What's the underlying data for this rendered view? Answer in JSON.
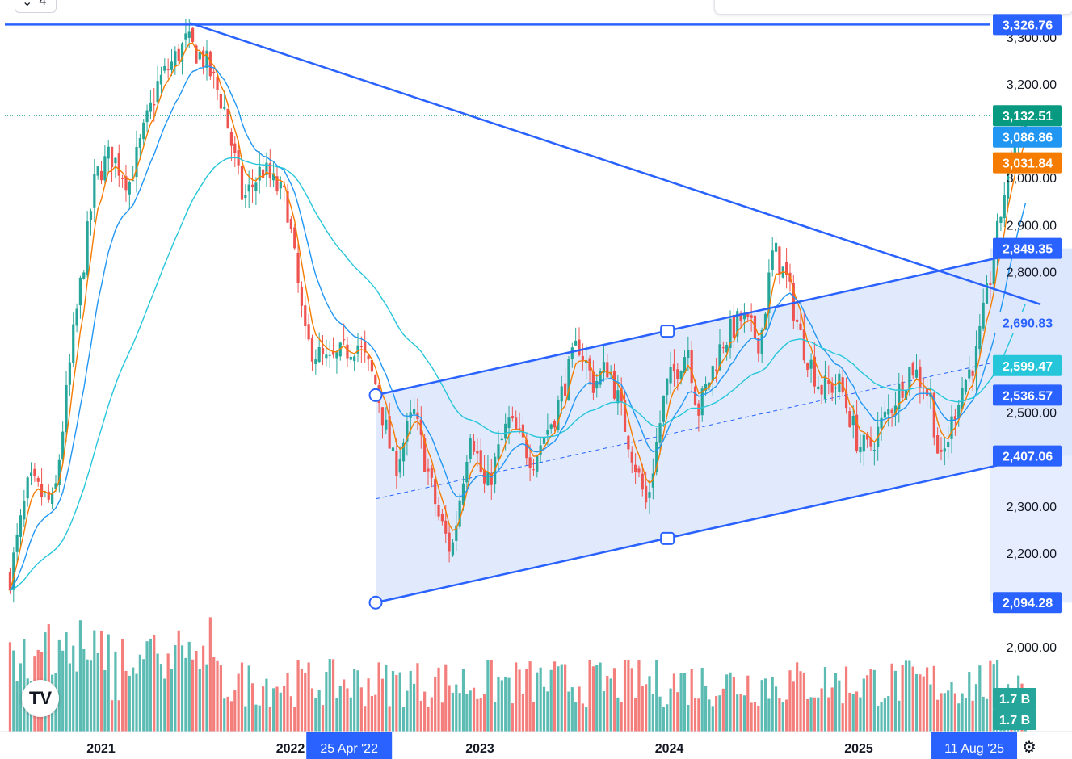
{
  "header": {
    "interval_label": "4",
    "collapse_icon": "chevron-down-icon"
  },
  "colors": {
    "up": "#26a69a",
    "down": "#ef5350",
    "trendline": "#2962ff",
    "channel_fill": "#dce6fd",
    "ema_fast": "#f57c00",
    "ema_mid": "#2196f3",
    "ma_slow": "#26c6da",
    "price_line": "#089981"
  },
  "chart_data": {
    "type": "candlestick",
    "y_axis": {
      "min": 1900,
      "max": 3360,
      "ticks": [
        "2,000.00",
        "2,100.00",
        "2,200.00",
        "2,300.00",
        "2,400.00",
        "2,500.00",
        "2,600.00",
        "2,700.00",
        "2,800.00",
        "2,900.00",
        "3,000.00",
        "3,100.00",
        "3,200.00",
        "3,300.00"
      ],
      "tick_values": [
        2000,
        2100,
        2200,
        2300,
        2400,
        2500,
        2600,
        2700,
        2800,
        2900,
        3000,
        3100,
        3200,
        3300
      ]
    },
    "x_axis": {
      "labels": [
        "2021",
        "2022",
        "2023",
        "2024",
        "2025"
      ],
      "label_times": [
        2021.0,
        2022.0,
        2023.0,
        2024.0,
        2025.0
      ],
      "range": [
        2020.5,
        2025.98
      ]
    },
    "series": [
      {
        "name": "price",
        "keypoints": [
          [
            2020.52,
            2150
          ],
          [
            2020.62,
            2350
          ],
          [
            2020.75,
            2300
          ],
          [
            2020.85,
            2650
          ],
          [
            2020.97,
            3000
          ],
          [
            2021.05,
            3050
          ],
          [
            2021.15,
            2990
          ],
          [
            2021.3,
            3200
          ],
          [
            2021.45,
            3290
          ],
          [
            2021.55,
            3250
          ],
          [
            2021.65,
            3150
          ],
          [
            2021.75,
            2950
          ],
          [
            2021.85,
            3020
          ],
          [
            2021.98,
            2950
          ],
          [
            2022.08,
            2650
          ],
          [
            2022.2,
            2600
          ],
          [
            2022.35,
            2650
          ],
          [
            2022.45,
            2560
          ],
          [
            2022.55,
            2380
          ],
          [
            2022.65,
            2500
          ],
          [
            2022.78,
            2280
          ],
          [
            2022.85,
            2200
          ],
          [
            2022.95,
            2470
          ],
          [
            2023.03,
            2330
          ],
          [
            2023.15,
            2480
          ],
          [
            2023.28,
            2400
          ],
          [
            2023.4,
            2500
          ],
          [
            2023.52,
            2650
          ],
          [
            2023.6,
            2560
          ],
          [
            2023.68,
            2600
          ],
          [
            2023.78,
            2450
          ],
          [
            2023.88,
            2300
          ],
          [
            2023.98,
            2550
          ],
          [
            2024.1,
            2640
          ],
          [
            2024.15,
            2500
          ],
          [
            2024.28,
            2650
          ],
          [
            2024.38,
            2700
          ],
          [
            2024.48,
            2650
          ],
          [
            2024.55,
            2850
          ],
          [
            2024.62,
            2780
          ],
          [
            2024.7,
            2650
          ],
          [
            2024.8,
            2550
          ],
          [
            2024.9,
            2560
          ],
          [
            2025.0,
            2430
          ],
          [
            2025.05,
            2420
          ],
          [
            2025.18,
            2520
          ],
          [
            2025.28,
            2600
          ],
          [
            2025.38,
            2530
          ],
          [
            2025.43,
            2380
          ],
          [
            2025.53,
            2540
          ],
          [
            2025.62,
            2620
          ],
          [
            2025.7,
            2800
          ],
          [
            2025.8,
            3050
          ],
          [
            2025.88,
            3132.51
          ]
        ]
      },
      {
        "name": "volume"
      }
    ],
    "annotations": {
      "resistance_line": {
        "price": 3326.76
      },
      "descending_trendline": {
        "points": [
          [
            2021.47,
            3330
          ],
          [
            2025.96,
            2730
          ]
        ]
      },
      "channel": {
        "upper": [
          [
            2022.45,
            2536.57
          ],
          [
            2025.96,
            2849.35
          ]
        ],
        "lower": [
          [
            2022.45,
            2094.28
          ],
          [
            2025.96,
            2407.06
          ]
        ],
        "mid_anchor_top": [
          2023.99,
          2673
        ],
        "mid_anchor_bottom": [
          2023.99,
          2231
        ]
      },
      "current_price": 3132.51
    },
    "price_tags": [
      {
        "label": "3,326.76",
        "value": 3326.76,
        "color": "#2962ff"
      },
      {
        "label": "3,132.51",
        "value": 3132.51,
        "color": "#089981"
      },
      {
        "label": "3,086.86",
        "value": 3086.86,
        "color": "#2196f3"
      },
      {
        "label": "3,031.84",
        "value": 3031.84,
        "color": "#f57c00"
      },
      {
        "label": "2,849.35",
        "value": 2849.35,
        "color": "#2962ff"
      },
      {
        "label": "2,690.83",
        "value": 2690.83,
        "color": "#dce6fd",
        "text_color": "#2962ff"
      },
      {
        "label": "2,599.47",
        "value": 2599.47,
        "color": "#26c6da"
      },
      {
        "label": "2,536.57",
        "value": 2536.57,
        "color": "#2962ff"
      },
      {
        "label": "2,407.06",
        "value": 2407.06,
        "color": "#2962ff"
      },
      {
        "label": "2,094.28",
        "value": 2094.28,
        "color": "#2962ff"
      }
    ],
    "volume_tags": [
      {
        "label": "1.7 B",
        "color": "#26a69a"
      },
      {
        "label": "1.7 B",
        "color": "#26a69a"
      }
    ],
    "time_tags": [
      {
        "label": "25 Apr '22",
        "time": 2022.31
      },
      {
        "label": "11 Aug '25",
        "time": 2025.61
      }
    ]
  }
}
